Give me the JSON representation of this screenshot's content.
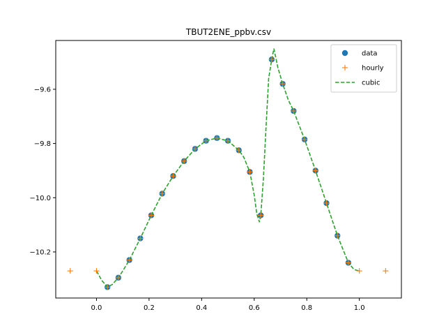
{
  "chart_data": {
    "type": "line",
    "title": "TBUT2ENE_ppbv.csv",
    "xlabel": "",
    "ylabel": "",
    "xlim": [
      -0.155,
      1.16
    ],
    "ylim": [
      -10.37,
      -9.42
    ],
    "xticks": [
      0.0,
      0.2,
      0.4,
      0.6,
      0.8,
      1.0
    ],
    "xtick_labels": [
      "0.0",
      "0.2",
      "0.4",
      "0.6",
      "0.8",
      "1.0"
    ],
    "yticks": [
      -9.6,
      -9.8,
      -10.0,
      -10.2
    ],
    "ytick_labels": [
      "−9.6",
      "−9.8",
      "−10.0",
      "−10.2"
    ],
    "grid": false,
    "legend_position": "top-right",
    "series": [
      {
        "name": "data",
        "kind": "scatter",
        "marker": "circle",
        "color": "#1f77b4",
        "x": [
          0.0417,
          0.0833,
          0.125,
          0.1667,
          0.2083,
          0.25,
          0.2917,
          0.3333,
          0.375,
          0.4167,
          0.4583,
          0.5,
          0.5417,
          0.5833,
          0.625,
          0.6667,
          0.7083,
          0.75,
          0.7917,
          0.8333,
          0.875,
          0.9167,
          0.9583
        ],
        "y": [
          -10.33,
          -10.295,
          -10.23,
          -10.15,
          -10.065,
          -9.985,
          -9.92,
          -9.865,
          -9.82,
          -9.79,
          -9.78,
          -9.79,
          -9.825,
          -9.905,
          -10.065,
          -9.49,
          -9.58,
          -9.68,
          -9.785,
          -9.9,
          -10.02,
          -10.14,
          -10.24
        ]
      },
      {
        "name": "hourly",
        "kind": "scatter",
        "marker": "plus",
        "color": "#ff7f0e",
        "x": [
          -0.1,
          0.0,
          0.0417,
          0.0833,
          0.125,
          0.1667,
          0.2083,
          0.25,
          0.2917,
          0.3333,
          0.375,
          0.4167,
          0.4583,
          0.5,
          0.5417,
          0.5833,
          0.625,
          0.6667,
          0.7083,
          0.75,
          0.7917,
          0.8333,
          0.875,
          0.9167,
          0.9583,
          1.0,
          1.1
        ],
        "y": [
          -10.27,
          -10.27,
          -10.33,
          -10.295,
          -10.23,
          -10.15,
          -10.065,
          -9.985,
          -9.92,
          -9.865,
          -9.82,
          -9.79,
          -9.78,
          -9.79,
          -9.825,
          -9.905,
          -10.065,
          -9.49,
          -9.58,
          -9.68,
          -9.785,
          -9.9,
          -10.02,
          -10.14,
          -10.24,
          -10.27,
          -10.27
        ]
      },
      {
        "name": "cubic",
        "kind": "line",
        "dash": "dashed",
        "color": "#2ca02c",
        "x": [
          0.0,
          0.02,
          0.0417,
          0.06,
          0.0833,
          0.1,
          0.125,
          0.1667,
          0.2083,
          0.25,
          0.2917,
          0.3333,
          0.375,
          0.4167,
          0.4583,
          0.5,
          0.5417,
          0.56,
          0.5833,
          0.6,
          0.61,
          0.62,
          0.625,
          0.635,
          0.645,
          0.655,
          0.6667,
          0.675,
          0.69,
          0.7083,
          0.73,
          0.75,
          0.7917,
          0.8333,
          0.875,
          0.9167,
          0.9583,
          0.98,
          1.0
        ],
        "y": [
          -10.27,
          -10.305,
          -10.33,
          -10.32,
          -10.295,
          -10.27,
          -10.23,
          -10.15,
          -10.065,
          -9.985,
          -9.92,
          -9.865,
          -9.82,
          -9.79,
          -9.78,
          -9.79,
          -9.825,
          -9.85,
          -9.905,
          -9.99,
          -10.06,
          -10.09,
          -10.065,
          -9.93,
          -9.74,
          -9.56,
          -9.49,
          -9.45,
          -9.52,
          -9.58,
          -9.64,
          -9.68,
          -9.785,
          -9.9,
          -10.02,
          -10.14,
          -10.24,
          -10.265,
          -10.27
        ]
      }
    ]
  }
}
